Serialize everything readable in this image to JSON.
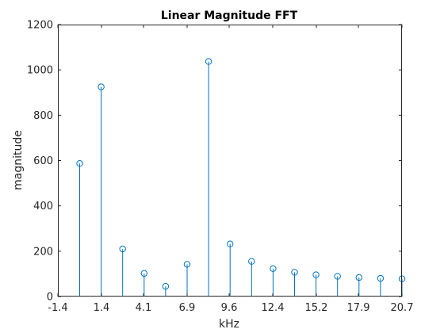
{
  "chart_data": {
    "type": "stem",
    "title": "Linear Magnitude FFT",
    "xlabel": "kHz",
    "ylabel": "magnitude",
    "xlim": [
      -1.4,
      20.7
    ],
    "ylim": [
      0,
      1200
    ],
    "xticks": [
      -1.4,
      1.4,
      4.1,
      6.9,
      9.6,
      12.4,
      15.2,
      17.9,
      20.7
    ],
    "xtick_labels": [
      "-1.4",
      "1.4",
      "4.1",
      "6.9",
      "9.6",
      "12.4",
      "15.2",
      "17.9",
      "20.7"
    ],
    "yticks": [
      0,
      200,
      400,
      600,
      800,
      1000,
      1200
    ],
    "ytick_labels": [
      "0",
      "200",
      "400",
      "600",
      "800",
      "1000",
      "1200"
    ],
    "grid": false,
    "series": [
      {
        "color": "#0072BD",
        "marker": "circle",
        "x": [
          0.0,
          1.38,
          2.76,
          4.14,
          5.52,
          6.9,
          8.28,
          9.66,
          11.04,
          12.42,
          13.8,
          15.18,
          16.56,
          17.94,
          19.32,
          20.7
        ],
        "y": [
          587,
          925,
          210,
          102,
          45,
          142,
          1037,
          232,
          155,
          123,
          107,
          96,
          89,
          84,
          80,
          78
        ]
      }
    ]
  }
}
